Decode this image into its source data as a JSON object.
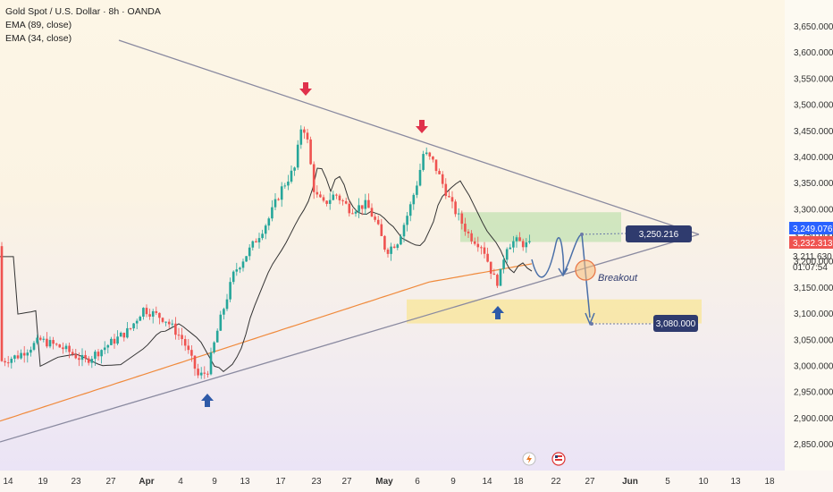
{
  "legend": {
    "title": "Gold Spot / U.S. Dollar · 8h · OANDA",
    "ema89": "EMA (89, close)",
    "ema34": "EMA (34, close)"
  },
  "price_axis": {
    "ticks": [
      "3,650.000",
      "3,600.000",
      "3,550.000",
      "3,500.000",
      "3,450.000",
      "3,400.000",
      "3,350.000",
      "3,300.000",
      "3,250.000",
      "3,200.000",
      "3,150.000",
      "3,100.000",
      "3,050.000",
      "3,000.000",
      "2,950.000",
      "2,900.000",
      "2,850.000"
    ],
    "tick_values": [
      3650,
      3600,
      3550,
      3500,
      3450,
      3400,
      3350,
      3300,
      3250,
      3200,
      3150,
      3100,
      3050,
      3000,
      2950,
      2900,
      2850
    ],
    "label_blue": "3,249.076",
    "label_red": "3,232.313",
    "label_price": "3,211.630",
    "label_countdown": "01:07:54"
  },
  "time_axis": {
    "ticks": [
      {
        "label": "14",
        "bold": false
      },
      {
        "label": "19",
        "bold": false
      },
      {
        "label": "23",
        "bold": false
      },
      {
        "label": "27",
        "bold": false
      },
      {
        "label": "Apr",
        "bold": true
      },
      {
        "label": "4",
        "bold": false
      },
      {
        "label": "9",
        "bold": false
      },
      {
        "label": "13",
        "bold": false
      },
      {
        "label": "17",
        "bold": false
      },
      {
        "label": "23",
        "bold": false
      },
      {
        "label": "27",
        "bold": false
      },
      {
        "label": "May",
        "bold": true
      },
      {
        "label": "6",
        "bold": false
      },
      {
        "label": "9",
        "bold": false
      },
      {
        "label": "14",
        "bold": false
      },
      {
        "label": "18",
        "bold": false
      },
      {
        "label": "22",
        "bold": false
      },
      {
        "label": "27",
        "bold": false
      },
      {
        "label": "Jun",
        "bold": true
      },
      {
        "label": "5",
        "bold": false
      },
      {
        "label": "10",
        "bold": false
      },
      {
        "label": "13",
        "bold": false
      },
      {
        "label": "18",
        "bold": false
      }
    ]
  },
  "annotations": {
    "target_high_label": "3,250.216",
    "target_low_label": "3,080.000",
    "breakout_label": "Breakout"
  },
  "colors": {
    "bull": "#26a69a",
    "bear": "#ef5350",
    "ema89": "#f08a3c",
    "ema34": "#333333",
    "trendline": "#8a8aa0",
    "arrow_down": "#e0314b",
    "arrow_up": "#2e5aa8",
    "label_bg": "#2f3b6e",
    "green_zone": "rgba(174,220,160,0.55)",
    "yellow_zone": "rgba(250,226,130,0.6)"
  },
  "icons": [
    "flash-icon",
    "us-flag-calendar-icon"
  ],
  "chart_data": {
    "type": "candlestick",
    "title": "Gold Spot / U.S. Dollar · 8h · OANDA",
    "xlabel": "",
    "ylabel": "",
    "ylim": [
      2830,
      3680
    ],
    "grid": false,
    "series": [
      {
        "name": "EMA (89, close)"
      },
      {
        "name": "EMA (34, close)"
      }
    ],
    "current_price": 3211.63,
    "targets": [
      3250.216,
      3080.0
    ]
  }
}
